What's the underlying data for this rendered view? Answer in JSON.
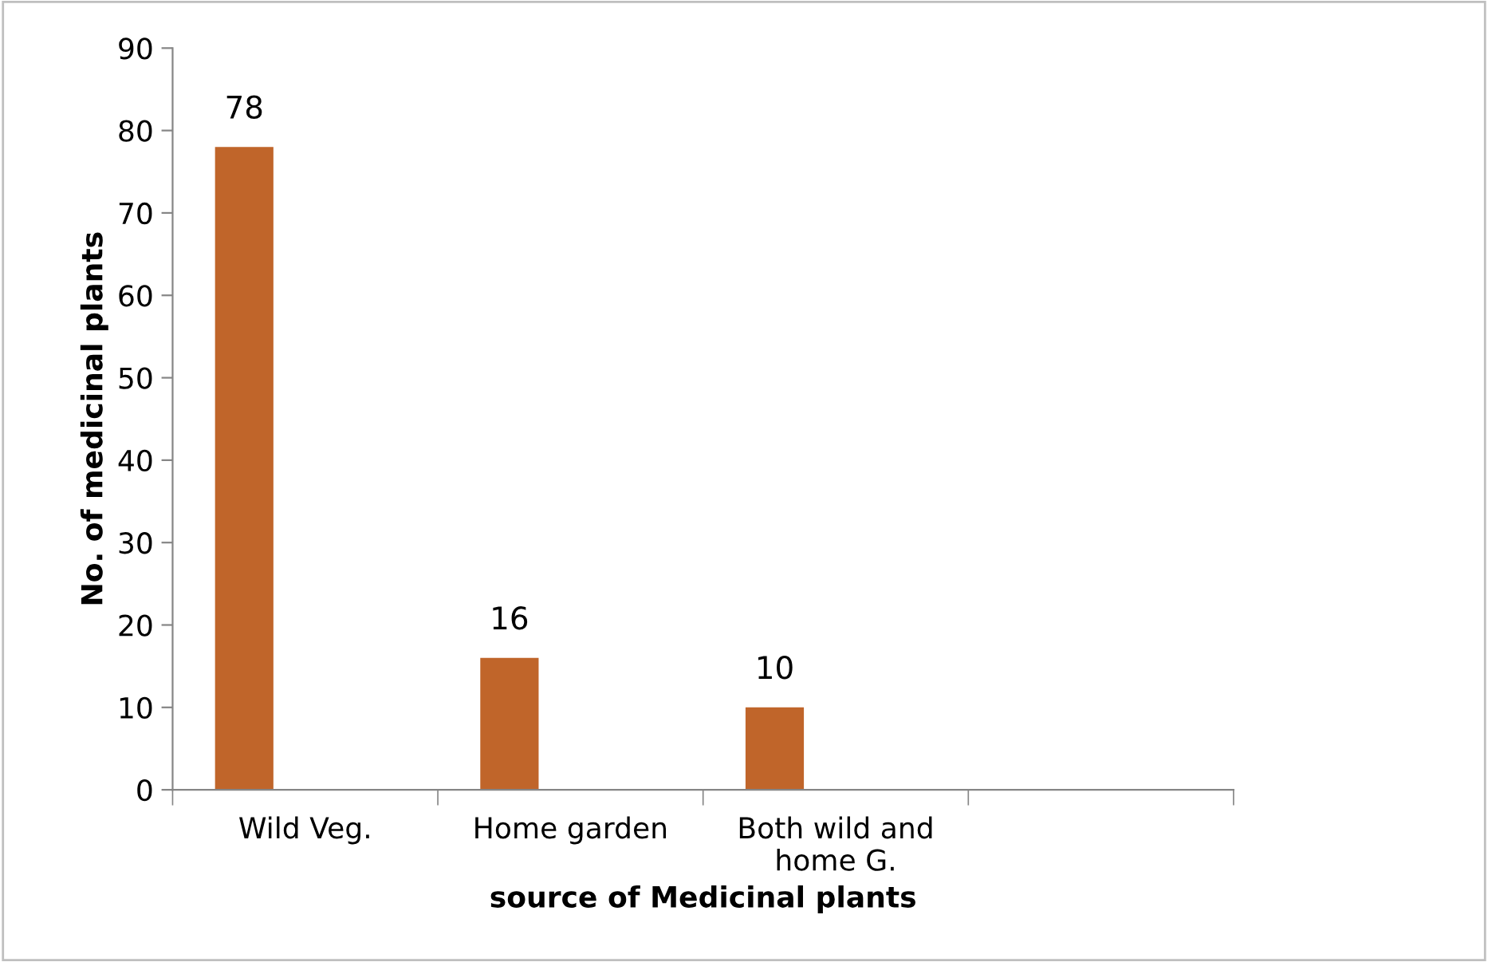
{
  "chart_data": {
    "type": "bar",
    "xlabel": "source of Medicinal plants",
    "ylabel": "No. of medicinal plants",
    "categories": [
      "Wild Veg.",
      "Home garden",
      "Both wild and\nhome G.",
      null
    ],
    "values": [
      78,
      16,
      10,
      null
    ],
    "color": "#c0652a",
    "ylim": [
      0,
      90
    ],
    "yticks": [
      0,
      10,
      20,
      30,
      40,
      50,
      60,
      70,
      80,
      90
    ],
    "grid": false,
    "data_labels": true
  }
}
